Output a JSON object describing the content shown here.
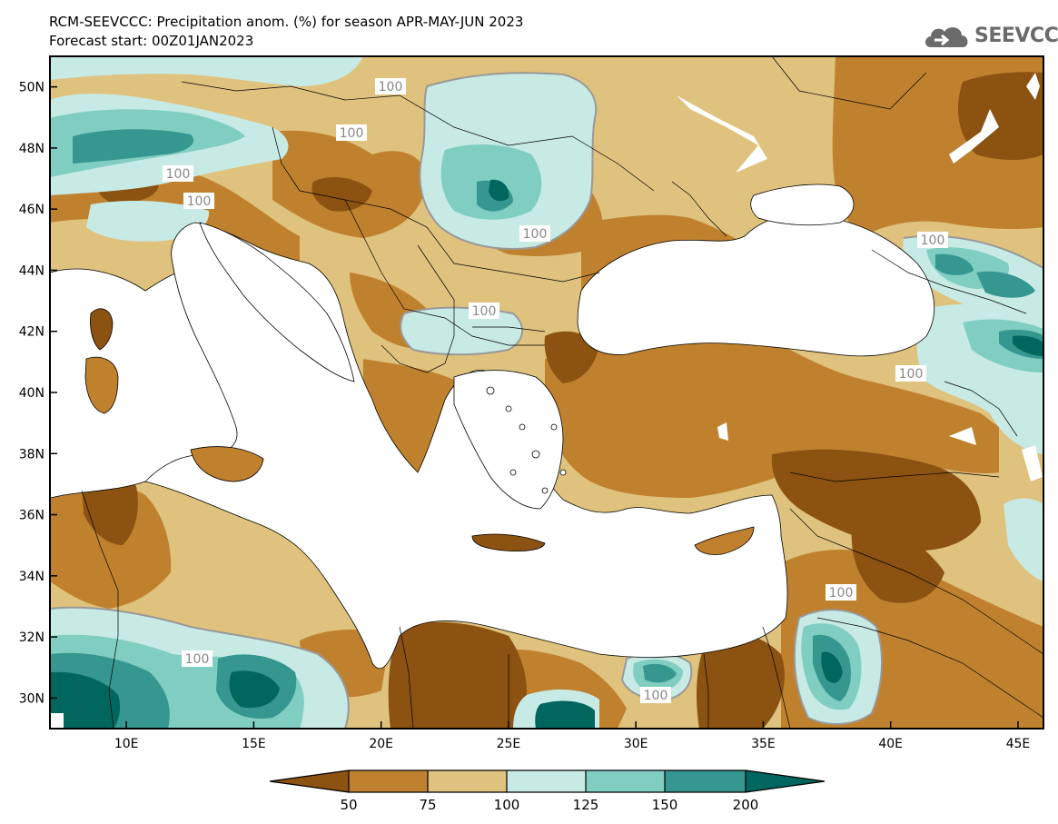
{
  "header": {
    "title": "RCM-SEEVCCC: Precipitation anom. (%) for season APR-MAY-JUN 2023",
    "subtitle": "Forecast start: 00Z01JAN2023"
  },
  "logo": {
    "text": "SEEVCCC",
    "icon": "cloud-icon"
  },
  "map": {
    "type": "filled contour map",
    "variable": "Precipitation anomaly (%)",
    "region": "Mediterranean / Southeast Europe / Black Sea",
    "lon_range": [
      7,
      46
    ],
    "lat_range": [
      29,
      51
    ],
    "lat_ticks": [
      "50N",
      "48N",
      "46N",
      "44N",
      "42N",
      "40N",
      "38N",
      "36N",
      "34N",
      "32N",
      "30N"
    ],
    "lon_ticks": [
      "10E",
      "15E",
      "20E",
      "25E",
      "30E",
      "35E",
      "40E",
      "45E"
    ],
    "contour_labels": [
      "100",
      "100",
      "100",
      "100",
      "100",
      "100",
      "100",
      "100",
      "100",
      "100",
      "100"
    ]
  },
  "colorbar": {
    "levels": [
      "50",
      "75",
      "100",
      "125",
      "150",
      "200"
    ],
    "colors": [
      "#8b5212",
      "#c0812e",
      "#dfc27d",
      "#c7eae5",
      "#80cdc1",
      "#35978f",
      "#01665e"
    ]
  }
}
